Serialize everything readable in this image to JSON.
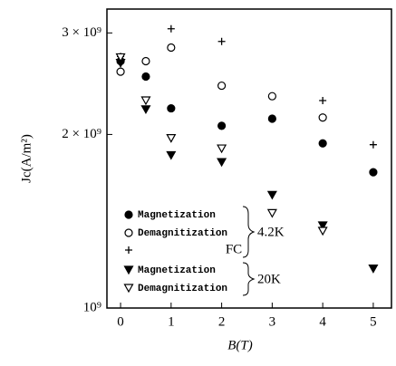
{
  "chart_data": {
    "type": "scatter",
    "x_label": "B(T)",
    "y_label": "Jc(A/m²)",
    "xlim": [
      -0.27,
      5.36
    ],
    "xticks": [
      0,
      1,
      2,
      3,
      4,
      5
    ],
    "ylim": [
      1000000000,
      3300000000
    ],
    "log_y": true,
    "yticks": [
      {
        "value": 1000000000,
        "label": "10⁹"
      },
      {
        "value": 2000000000,
        "label": "2 × 10⁹"
      },
      {
        "value": 3000000000,
        "label": "3 × 10⁹"
      }
    ],
    "legend_groups": [
      {
        "label": "4.2K",
        "series": [
          0,
          1,
          2
        ]
      },
      {
        "label": "20K",
        "series": [
          3,
          4
        ]
      }
    ],
    "series": [
      {
        "name": "Magnetization",
        "marker": "filled-circle",
        "color": "#000",
        "x": [
          0,
          0.5,
          1,
          2,
          3,
          4,
          5
        ],
        "values": [
          2680000000,
          2520000000,
          2220000000,
          2070000000,
          2130000000,
          1930000000,
          1720000000
        ]
      },
      {
        "name": "Demagnitization",
        "marker": "open-circle",
        "color": "#000",
        "x": [
          0,
          0.5,
          1,
          2,
          3,
          4
        ],
        "values": [
          2570000000,
          2680000000,
          2830000000,
          2430000000,
          2330000000,
          2140000000
        ]
      },
      {
        "name": "FC",
        "marker": "plus",
        "color": "#000",
        "x": [
          0,
          1,
          2,
          4,
          5
        ],
        "values": [
          2730000000,
          3050000000,
          2900000000,
          2290000000,
          1920000000
        ]
      },
      {
        "name": "Magnetization",
        "marker": "filled-triangle",
        "color": "#000",
        "x": [
          0,
          0.5,
          1,
          2,
          3,
          4,
          5
        ],
        "values": [
          2660000000,
          2210000000,
          1840000000,
          1790000000,
          1570000000,
          1390000000,
          1170000000
        ]
      },
      {
        "name": "Demagnitization",
        "marker": "open-triangle",
        "color": "#000",
        "x": [
          0,
          0.5,
          1,
          2,
          3,
          4
        ],
        "values": [
          2720000000,
          2290000000,
          1970000000,
          1890000000,
          1460000000,
          1360000000
        ]
      }
    ]
  }
}
